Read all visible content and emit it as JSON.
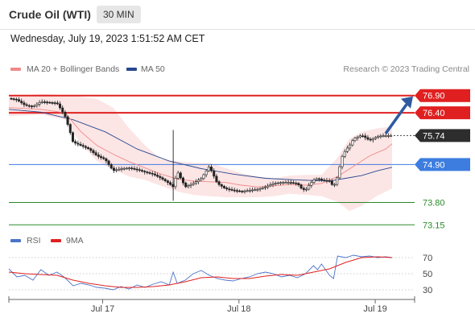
{
  "header": {
    "title": "Crude Oil (WTI)",
    "interval": "30 MIN"
  },
  "timestamp": "Wednesday, July 19, 2023 1:51:52 AM CET",
  "legend": {
    "ma20": {
      "label": "MA 20 + Bollinger Bands",
      "color": "#f08a8a"
    },
    "ma50": {
      "label": "MA 50",
      "color": "#27498f"
    },
    "credit": "Research © 2023 Trading Central"
  },
  "rsi_legend": {
    "rsi": {
      "label": "RSI",
      "color": "#4b73c9"
    },
    "ma9": {
      "label": "9MA",
      "color": "#e02020"
    }
  },
  "chart_data": [
    {
      "type": "candlestick",
      "title": "Crude Oil (WTI)",
      "interval": "30 MIN",
      "ylim": [
        72.9,
        77.15
      ],
      "x_ticks": [
        "Jul 17",
        "Jul 18",
        "Jul 19"
      ],
      "current_price": {
        "value": 75.74,
        "label": "75.74"
      },
      "levels": [
        {
          "value": 76.9,
          "label": "76.90",
          "kind": "resistance",
          "color": "#e02020"
        },
        {
          "value": 76.4,
          "label": "76.40",
          "kind": "resistance",
          "color": "#e02020"
        },
        {
          "value": 74.9,
          "label": "74.90",
          "kind": "pivot",
          "color": "#3d7de0"
        },
        {
          "value": 73.8,
          "label": "73.80",
          "kind": "support",
          "color": "#2a8a2a"
        },
        {
          "value": 73.15,
          "label": "73.15",
          "kind": "support",
          "color": "#2a8a2a"
        }
      ],
      "forecast_target": 76.9,
      "price_path": [
        [
          0,
          76.82
        ],
        [
          10,
          76.78
        ],
        [
          20,
          76.62
        ],
        [
          30,
          76.58
        ],
        [
          40,
          76.72
        ],
        [
          50,
          76.7
        ],
        [
          60,
          76.68
        ],
        [
          65,
          76.5
        ],
        [
          70,
          76.3
        ],
        [
          75,
          75.95
        ],
        [
          80,
          75.55
        ],
        [
          90,
          75.45
        ],
        [
          100,
          75.35
        ],
        [
          110,
          75.15
        ],
        [
          120,
          75.05
        ],
        [
          130,
          74.72
        ],
        [
          140,
          74.78
        ],
        [
          150,
          74.8
        ],
        [
          160,
          74.75
        ],
        [
          170,
          74.68
        ],
        [
          180,
          74.62
        ],
        [
          190,
          74.5
        ],
        [
          200,
          74.35
        ],
        [
          205,
          74.25
        ],
        [
          210,
          74.7
        ],
        [
          220,
          74.25
        ],
        [
          230,
          74.35
        ],
        [
          240,
          74.5
        ],
        [
          250,
          74.85
        ],
        [
          255,
          74.6
        ],
        [
          260,
          74.35
        ],
        [
          270,
          74.2
        ],
        [
          280,
          74.15
        ],
        [
          290,
          74.12
        ],
        [
          300,
          74.15
        ],
        [
          310,
          74.18
        ],
        [
          320,
          74.25
        ],
        [
          330,
          74.35
        ],
        [
          340,
          74.38
        ],
        [
          350,
          74.38
        ],
        [
          360,
          74.35
        ],
        [
          365,
          74.2
        ],
        [
          370,
          74.15
        ],
        [
          375,
          74.32
        ],
        [
          380,
          74.45
        ],
        [
          385,
          74.5
        ],
        [
          390,
          74.45
        ],
        [
          400,
          74.42
        ],
        [
          405,
          74.25
        ],
        [
          410,
          74.55
        ],
        [
          415,
          75.1
        ],
        [
          420,
          75.32
        ],
        [
          425,
          75.45
        ],
        [
          430,
          75.65
        ],
        [
          440,
          75.75
        ],
        [
          450,
          75.6
        ],
        [
          460,
          75.72
        ],
        [
          470,
          75.74
        ],
        [
          480,
          75.74
        ]
      ],
      "ma20": [
        [
          0,
          76.55
        ],
        [
          40,
          76.5
        ],
        [
          70,
          76.4
        ],
        [
          90,
          75.85
        ],
        [
          110,
          75.45
        ],
        [
          130,
          75.2
        ],
        [
          150,
          74.98
        ],
        [
          170,
          74.8
        ],
        [
          190,
          74.62
        ],
        [
          210,
          74.48
        ],
        [
          230,
          74.42
        ],
        [
          250,
          74.4
        ],
        [
          270,
          74.38
        ],
        [
          290,
          74.3
        ],
        [
          310,
          74.25
        ],
        [
          330,
          74.28
        ],
        [
          350,
          74.32
        ],
        [
          370,
          74.3
        ],
        [
          390,
          74.35
        ],
        [
          410,
          74.55
        ],
        [
          430,
          74.85
        ],
        [
          450,
          75.15
        ],
        [
          470,
          75.35
        ],
        [
          478,
          75.5
        ]
      ],
      "bollinger_upper": [
        [
          0,
          76.85
        ],
        [
          40,
          76.95
        ],
        [
          80,
          76.9
        ],
        [
          110,
          76.8
        ],
        [
          130,
          76.55
        ],
        [
          150,
          75.95
        ],
        [
          170,
          75.45
        ],
        [
          190,
          75.05
        ],
        [
          210,
          75.0
        ],
        [
          230,
          74.95
        ],
        [
          250,
          74.95
        ],
        [
          270,
          74.8
        ],
        [
          290,
          74.65
        ],
        [
          310,
          74.55
        ],
        [
          330,
          74.5
        ],
        [
          350,
          74.58
        ],
        [
          370,
          74.6
        ],
        [
          390,
          74.6
        ],
        [
          410,
          75.1
        ],
        [
          425,
          75.65
        ],
        [
          440,
          75.85
        ],
        [
          460,
          75.95
        ],
        [
          478,
          76.0
        ]
      ],
      "bollinger_lower": [
        [
          0,
          76.3
        ],
        [
          40,
          76.35
        ],
        [
          70,
          76.2
        ],
        [
          90,
          75.5
        ],
        [
          110,
          75.0
        ],
        [
          130,
          74.75
        ],
        [
          150,
          74.55
        ],
        [
          170,
          74.45
        ],
        [
          190,
          74.28
        ],
        [
          210,
          74.12
        ],
        [
          230,
          74.02
        ],
        [
          250,
          73.98
        ],
        [
          270,
          73.95
        ],
        [
          290,
          73.95
        ],
        [
          310,
          73.95
        ],
        [
          330,
          73.98
        ],
        [
          350,
          74.05
        ],
        [
          370,
          74.02
        ],
        [
          390,
          73.98
        ],
        [
          410,
          73.82
        ],
        [
          425,
          73.55
        ],
        [
          440,
          73.7
        ],
        [
          460,
          74.0
        ],
        [
          478,
          74.2
        ]
      ],
      "ma50": [
        [
          0,
          76.5
        ],
        [
          40,
          76.42
        ],
        [
          80,
          76.2
        ],
        [
          120,
          75.85
        ],
        [
          160,
          75.35
        ],
        [
          200,
          75.0
        ],
        [
          240,
          74.78
        ],
        [
          280,
          74.62
        ],
        [
          320,
          74.5
        ],
        [
          360,
          74.45
        ],
        [
          400,
          74.42
        ],
        [
          420,
          74.5
        ],
        [
          440,
          74.58
        ],
        [
          460,
          74.72
        ],
        [
          478,
          74.82
        ]
      ]
    },
    {
      "type": "line",
      "title": "RSI",
      "ylim": [
        20,
        80
      ],
      "y_ticks": [
        30,
        50,
        70
      ],
      "series": [
        {
          "name": "RSI",
          "color": "#4b73c9",
          "points": [
            [
              0,
              56
            ],
            [
              10,
              46
            ],
            [
              20,
              48
            ],
            [
              30,
              42
            ],
            [
              40,
              55
            ],
            [
              50,
              48
            ],
            [
              60,
              52
            ],
            [
              70,
              45
            ],
            [
              80,
              35
            ],
            [
              90,
              38
            ],
            [
              100,
              36
            ],
            [
              110,
              33
            ],
            [
              120,
              32
            ],
            [
              130,
              30
            ],
            [
              140,
              34
            ],
            [
              150,
              31
            ],
            [
              160,
              36
            ],
            [
              170,
              33
            ],
            [
              180,
              37
            ],
            [
              190,
              40
            ],
            [
              200,
              36
            ],
            [
              205,
              52
            ],
            [
              210,
              38
            ],
            [
              220,
              42
            ],
            [
              230,
              50
            ],
            [
              240,
              54
            ],
            [
              250,
              48
            ],
            [
              260,
              44
            ],
            [
              270,
              42
            ],
            [
              280,
              41
            ],
            [
              290,
              44
            ],
            [
              300,
              46
            ],
            [
              310,
              50
            ],
            [
              320,
              52
            ],
            [
              330,
              50
            ],
            [
              340,
              46
            ],
            [
              350,
              48
            ],
            [
              360,
              45
            ],
            [
              370,
              50
            ],
            [
              380,
              60
            ],
            [
              385,
              55
            ],
            [
              390,
              62
            ],
            [
              400,
              48
            ],
            [
              405,
              44
            ],
            [
              410,
              72
            ],
            [
              420,
              70
            ],
            [
              430,
              73
            ],
            [
              440,
              71
            ],
            [
              450,
              72
            ],
            [
              460,
              70
            ],
            [
              470,
              71
            ],
            [
              478,
              70
            ]
          ]
        },
        {
          "name": "9MA",
          "color": "#e02020",
          "points": [
            [
              0,
              52
            ],
            [
              20,
              50
            ],
            [
              40,
              49
            ],
            [
              60,
              48
            ],
            [
              80,
              42
            ],
            [
              100,
              38
            ],
            [
              120,
              35
            ],
            [
              140,
              33
            ],
            [
              160,
              33
            ],
            [
              180,
              34
            ],
            [
              200,
              36
            ],
            [
              220,
              40
            ],
            [
              240,
              45
            ],
            [
              260,
              46
            ],
            [
              280,
              44
            ],
            [
              300,
              44
            ],
            [
              320,
              47
            ],
            [
              340,
              49
            ],
            [
              360,
              48
            ],
            [
              380,
              52
            ],
            [
              400,
              56
            ],
            [
              420,
              64
            ],
            [
              440,
              70
            ],
            [
              460,
              71
            ],
            [
              478,
              70
            ]
          ]
        }
      ]
    }
  ]
}
